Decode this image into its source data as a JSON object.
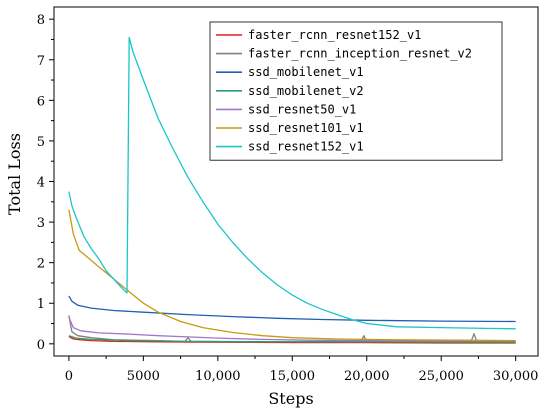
{
  "chart_data": {
    "type": "line",
    "title": "",
    "xlabel": "Steps",
    "ylabel": "Total Loss",
    "xlim": [
      -1000,
      31500
    ],
    "ylim": [
      -0.3,
      8.3
    ],
    "xticks": [
      0,
      5000,
      10000,
      15000,
      20000,
      25000,
      30000
    ],
    "xtick_labels": [
      "0",
      "5000",
      "10,000",
      "15,000",
      "20,000",
      "25,000",
      "30,000"
    ],
    "yticks": [
      0,
      1,
      2,
      3,
      4,
      5,
      6,
      7,
      8
    ],
    "ytick_labels": [
      "0",
      "1",
      "2",
      "3",
      "4",
      "5",
      "6",
      "7",
      "8"
    ],
    "legend_position": "top-right",
    "grid": false,
    "series": [
      {
        "name": "faster_rcnn_resnet152_v1",
        "color": "#e0201b",
        "points": [
          [
            0,
            0.18
          ],
          [
            300,
            0.12
          ],
          [
            800,
            0.1
          ],
          [
            1500,
            0.08
          ],
          [
            3000,
            0.06
          ],
          [
            6000,
            0.05
          ],
          [
            10000,
            0.04
          ],
          [
            15000,
            0.03
          ],
          [
            20000,
            0.03
          ],
          [
            25000,
            0.02
          ],
          [
            30000,
            0.02
          ]
        ]
      },
      {
        "name": "faster_rcnn_inception_resnet_v2",
        "color": "#808080",
        "points": [
          [
            0,
            0.7
          ],
          [
            200,
            0.3
          ],
          [
            600,
            0.2
          ],
          [
            1500,
            0.15
          ],
          [
            3000,
            0.1
          ],
          [
            6000,
            0.08
          ],
          [
            7800,
            0.06
          ],
          [
            8000,
            0.15
          ],
          [
            8200,
            0.06
          ],
          [
            12000,
            0.05
          ],
          [
            17000,
            0.05
          ],
          [
            19600,
            0.05
          ],
          [
            19800,
            0.2
          ],
          [
            20000,
            0.05
          ],
          [
            23000,
            0.05
          ],
          [
            27000,
            0.05
          ],
          [
            27200,
            0.25
          ],
          [
            27400,
            0.05
          ],
          [
            30000,
            0.06
          ]
        ]
      },
      {
        "name": "ssd_mobilenet_v1",
        "color": "#1f5fb4",
        "points": [
          [
            0,
            1.18
          ],
          [
            200,
            1.05
          ],
          [
            600,
            0.95
          ],
          [
            1500,
            0.88
          ],
          [
            3000,
            0.82
          ],
          [
            5000,
            0.78
          ],
          [
            8000,
            0.72
          ],
          [
            11000,
            0.67
          ],
          [
            14000,
            0.63
          ],
          [
            17000,
            0.6
          ],
          [
            20000,
            0.58
          ],
          [
            25000,
            0.56
          ],
          [
            30000,
            0.55
          ]
        ]
      },
      {
        "name": "ssd_mobilenet_v2",
        "color": "#2e9e6e",
        "points": [
          [
            0,
            0.2
          ],
          [
            500,
            0.14
          ],
          [
            1500,
            0.11
          ],
          [
            4000,
            0.08
          ],
          [
            8000,
            0.06
          ],
          [
            14000,
            0.05
          ],
          [
            20000,
            0.05
          ],
          [
            25000,
            0.04
          ],
          [
            30000,
            0.04
          ]
        ]
      },
      {
        "name": "ssd_resnet50_v1",
        "color": "#a176c9",
        "points": [
          [
            0,
            0.65
          ],
          [
            300,
            0.4
          ],
          [
            800,
            0.32
          ],
          [
            2000,
            0.27
          ],
          [
            4000,
            0.24
          ],
          [
            6000,
            0.2
          ],
          [
            8000,
            0.17
          ],
          [
            10000,
            0.14
          ],
          [
            13000,
            0.11
          ],
          [
            16000,
            0.09
          ],
          [
            20000,
            0.08
          ],
          [
            25000,
            0.07
          ],
          [
            30000,
            0.07
          ]
        ]
      },
      {
        "name": "ssd_resnet101_v1",
        "color": "#c89a10",
        "points": [
          [
            0,
            3.3
          ],
          [
            300,
            2.7
          ],
          [
            700,
            2.3
          ],
          [
            1200,
            2.15
          ],
          [
            2000,
            1.9
          ],
          [
            3000,
            1.6
          ],
          [
            4000,
            1.3
          ],
          [
            5000,
            1.0
          ],
          [
            6000,
            0.78
          ],
          [
            7500,
            0.55
          ],
          [
            9000,
            0.4
          ],
          [
            11000,
            0.28
          ],
          [
            13000,
            0.2
          ],
          [
            15000,
            0.15
          ],
          [
            18000,
            0.12
          ],
          [
            22000,
            0.1
          ],
          [
            26000,
            0.09
          ],
          [
            30000,
            0.08
          ]
        ]
      },
      {
        "name": "ssd_resnet152_v1",
        "color": "#19c6c8",
        "points": [
          [
            0,
            3.75
          ],
          [
            200,
            3.4
          ],
          [
            500,
            3.1
          ],
          [
            1000,
            2.65
          ],
          [
            1500,
            2.35
          ],
          [
            2000,
            2.1
          ],
          [
            2500,
            1.8
          ],
          [
            3000,
            1.6
          ],
          [
            3500,
            1.4
          ],
          [
            3900,
            1.25
          ],
          [
            4050,
            7.55
          ],
          [
            4300,
            7.2
          ],
          [
            5000,
            6.5
          ],
          [
            6000,
            5.55
          ],
          [
            7000,
            4.8
          ],
          [
            8000,
            4.1
          ],
          [
            9000,
            3.5
          ],
          [
            10000,
            2.95
          ],
          [
            11000,
            2.5
          ],
          [
            12000,
            2.1
          ],
          [
            13000,
            1.75
          ],
          [
            14000,
            1.45
          ],
          [
            15000,
            1.2
          ],
          [
            16000,
            1.0
          ],
          [
            17000,
            0.85
          ],
          [
            18000,
            0.72
          ],
          [
            19000,
            0.6
          ],
          [
            20000,
            0.5
          ],
          [
            22000,
            0.42
          ],
          [
            25000,
            0.4
          ],
          [
            28000,
            0.38
          ],
          [
            30000,
            0.37
          ]
        ]
      }
    ]
  }
}
